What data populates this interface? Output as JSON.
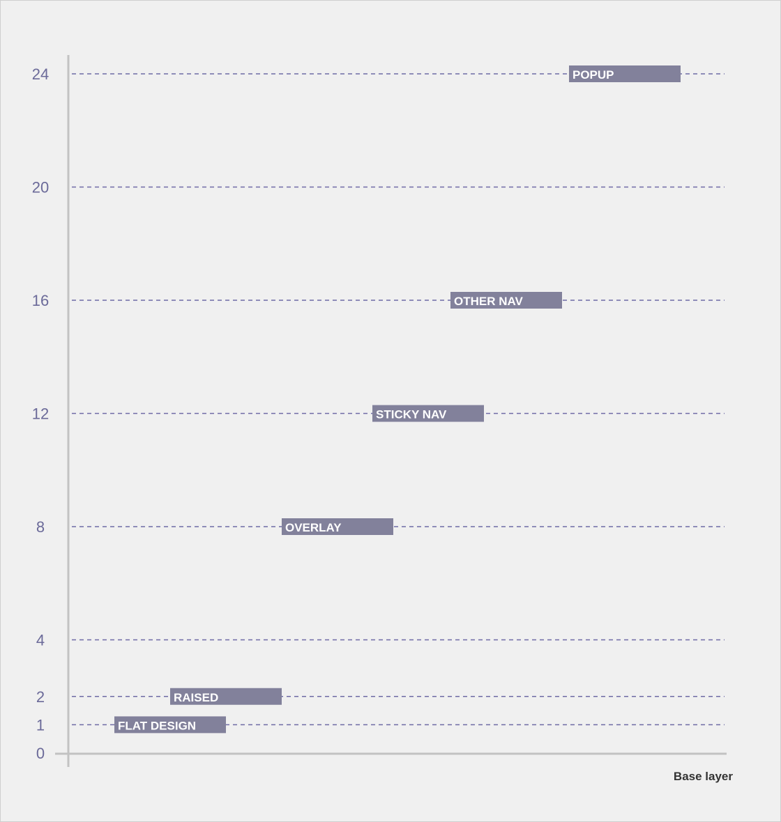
{
  "chart_data": {
    "type": "scatter",
    "y_ticks": [
      0,
      1,
      2,
      4,
      8,
      12,
      16,
      20,
      24
    ],
    "xlabel": "Base layer",
    "layers": [
      {
        "label": "FLAT DESIGN",
        "value": 1
      },
      {
        "label": "RAISED",
        "value": 2
      },
      {
        "label": "OVERLAY",
        "value": 8
      },
      {
        "label": "STICKY NAV",
        "value": 12
      },
      {
        "label": "OTHER NAV",
        "value": 16
      },
      {
        "label": "POPUP",
        "value": 24
      }
    ],
    "colors": {
      "gridline": "#6e6aa5",
      "tick_label": "#6b6a99",
      "bar": "#82819b",
      "bar_text": "#ffffff",
      "axis": "#c2c2c2",
      "base_label": "#333333"
    }
  }
}
